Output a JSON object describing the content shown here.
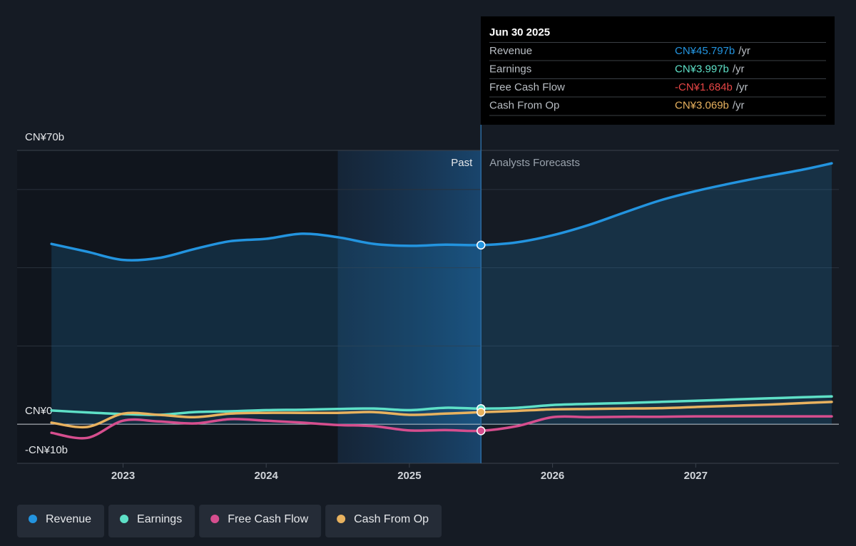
{
  "chart_data": {
    "type": "line",
    "x": [
      2022.5,
      2022.75,
      2023,
      2023.25,
      2023.5,
      2023.75,
      2024,
      2024.25,
      2024.5,
      2024.75,
      2025,
      2025.25,
      2025.5,
      2025.75,
      2026,
      2026.25,
      2026.5,
      2026.75,
      2027,
      2027.25,
      2027.5,
      2027.75,
      2027.95
    ],
    "series": [
      {
        "name": "Revenue",
        "color": "#2394df",
        "area": true,
        "values": [
          46.1,
          44.1,
          42.0,
          42.5,
          44.8,
          46.8,
          47.4,
          48.7,
          47.8,
          46.1,
          45.6,
          45.9,
          45.797,
          46.5,
          48.3,
          50.9,
          54.1,
          57.2,
          59.6,
          61.6,
          63.4,
          65.1,
          66.7
        ]
      },
      {
        "name": "Earnings",
        "color": "#5ee0c7",
        "values": [
          3.5,
          3.0,
          2.6,
          2.4,
          3.1,
          3.3,
          3.6,
          3.7,
          3.9,
          4.0,
          3.6,
          4.2,
          3.997,
          4.2,
          4.9,
          5.2,
          5.4,
          5.7,
          6.0,
          6.3,
          6.6,
          6.9,
          7.1
        ]
      },
      {
        "name": "Free Cash Flow",
        "color": "#d64e8e",
        "values": [
          -2.2,
          -3.5,
          0.9,
          0.7,
          0.2,
          1.3,
          0.9,
          0.4,
          -0.2,
          -0.5,
          -1.6,
          -1.5,
          -1.684,
          -0.5,
          1.8,
          1.8,
          1.9,
          1.9,
          2.0,
          2.0,
          2.0,
          2.0,
          2.0
        ]
      },
      {
        "name": "Cash From Op",
        "color": "#e8b25f",
        "values": [
          0.4,
          -0.7,
          2.7,
          2.4,
          1.8,
          2.7,
          2.9,
          2.9,
          2.9,
          3.1,
          2.4,
          2.7,
          3.069,
          3.4,
          3.8,
          3.9,
          4.0,
          4.1,
          4.4,
          4.7,
          5.0,
          5.4,
          5.7
        ]
      }
    ],
    "xlim": [
      2022.26,
      2028.0
    ],
    "xticks": [
      2023,
      2024,
      2025,
      2026,
      2027
    ],
    "ylim": [
      -10,
      70
    ],
    "yticks": [
      {
        "value": 70,
        "label": "CN¥70b"
      },
      {
        "value": 0,
        "label": "CN¥0"
      },
      {
        "value": -10,
        "label": "-CN¥10b"
      }
    ],
    "ygrid": [
      20,
      40,
      60
    ],
    "past_label": "Past",
    "forecast_label": "Analysts Forecasts",
    "forecast_start": 2025.5,
    "highlight_band": [
      2024.5,
      2025.5
    ],
    "highlight_x": 2025.5,
    "tooltip": {
      "date": "Jun 30 2025",
      "rows": [
        {
          "name": "Revenue",
          "value": "CN¥45.797b",
          "unit": "/yr",
          "color": "#2394df"
        },
        {
          "name": "Earnings",
          "value": "CN¥3.997b",
          "unit": "/yr",
          "color": "#5ee0c7"
        },
        {
          "name": "Free Cash Flow",
          "value": "-CN¥1.684b",
          "unit": "/yr",
          "color": "#e64545"
        },
        {
          "name": "Cash From Op",
          "value": "CN¥3.069b",
          "unit": "/yr",
          "color": "#e8b25f"
        }
      ]
    }
  }
}
